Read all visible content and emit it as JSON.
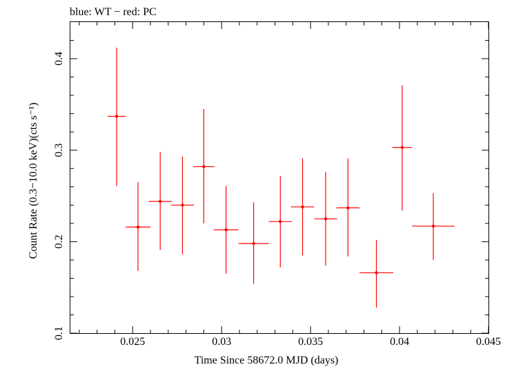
{
  "chart_data": {
    "type": "scatter",
    "title": "blue: WT − red: PC",
    "xlabel": "Time Since 58672.0 MJD (days)",
    "ylabel": "Count Rate (0.3−10.0 keV)(cts s⁻¹)",
    "xlim": [
      0.0215,
      0.045
    ],
    "ylim": [
      0.1,
      0.44
    ],
    "x_ticks": [
      0.025,
      0.03,
      0.035,
      0.04,
      0.045
    ],
    "x_tick_labels": [
      "0.025",
      "0.03",
      "0.035",
      "0.04",
      "0.045"
    ],
    "y_ticks": [
      0.1,
      0.2,
      0.3,
      0.4
    ],
    "y_tick_labels": [
      "0.1",
      "0.2",
      "0.3",
      "0.4"
    ],
    "grid": false,
    "series": [
      {
        "name": "PC",
        "color": "#ff0000",
        "points": [
          {
            "x": 0.0241,
            "y": 0.337,
            "xerr": 0.0005,
            "ylo": 0.261,
            "yhi": 0.412
          },
          {
            "x": 0.0253,
            "y": 0.216,
            "xerr": 0.0007,
            "ylo": 0.168,
            "yhi": 0.265
          },
          {
            "x": 0.02655,
            "y": 0.244,
            "xerr": 0.00065,
            "ylo": 0.191,
            "yhi": 0.298
          },
          {
            "x": 0.0278,
            "y": 0.24,
            "xerr": 0.00065,
            "ylo": 0.186,
            "yhi": 0.293
          },
          {
            "x": 0.029,
            "y": 0.282,
            "xerr": 0.0006,
            "ylo": 0.22,
            "yhi": 0.345
          },
          {
            "x": 0.03025,
            "y": 0.213,
            "xerr": 0.0007,
            "ylo": 0.165,
            "yhi": 0.261
          },
          {
            "x": 0.0318,
            "y": 0.198,
            "xerr": 0.00085,
            "ylo": 0.154,
            "yhi": 0.243
          },
          {
            "x": 0.0333,
            "y": 0.222,
            "xerr": 0.00065,
            "ylo": 0.172,
            "yhi": 0.272
          },
          {
            "x": 0.03455,
            "y": 0.238,
            "xerr": 0.00065,
            "ylo": 0.185,
            "yhi": 0.291
          },
          {
            "x": 0.03585,
            "y": 0.225,
            "xerr": 0.00065,
            "ylo": 0.174,
            "yhi": 0.276
          },
          {
            "x": 0.0371,
            "y": 0.237,
            "xerr": 0.00065,
            "ylo": 0.184,
            "yhi": 0.291
          },
          {
            "x": 0.0387,
            "y": 0.166,
            "xerr": 0.00095,
            "ylo": 0.128,
            "yhi": 0.202
          },
          {
            "x": 0.04015,
            "y": 0.303,
            "xerr": 0.00055,
            "ylo": 0.234,
            "yhi": 0.371
          },
          {
            "x": 0.0419,
            "y": 0.217,
            "xerr": 0.0012,
            "ylo": 0.18,
            "yhi": 0.253
          }
        ]
      }
    ]
  }
}
